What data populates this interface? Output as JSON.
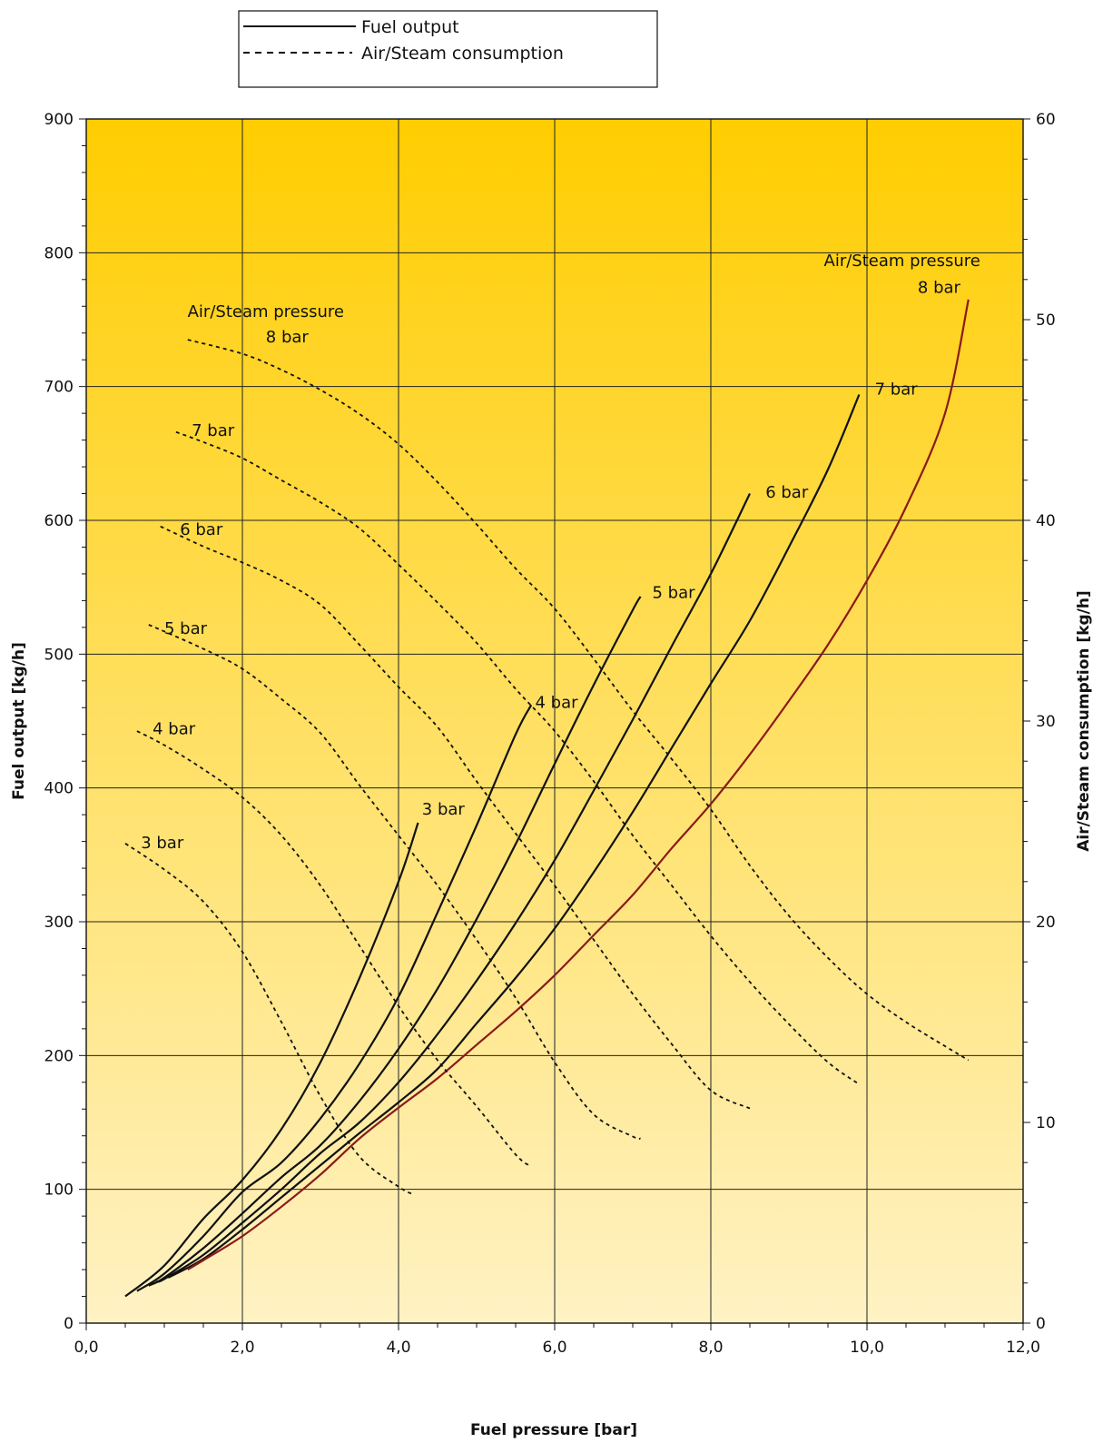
{
  "chart_data": {
    "type": "line",
    "xlabel": "Fuel pressure [bar]",
    "ylabel": "Fuel output [kg/h]",
    "y2label": "Air/Steam consumption [kg/h]",
    "xlim": [
      0,
      12
    ],
    "ylim": [
      0,
      900
    ],
    "y2lim": [
      0,
      60
    ],
    "x_ticks": [
      "0,0",
      "2,0",
      "4,0",
      "6,0",
      "8,0",
      "10,0",
      "12,0"
    ],
    "x_tick_values": [
      0,
      2,
      4,
      6,
      8,
      10,
      12
    ],
    "y_ticks": [
      "0",
      "100",
      "200",
      "300",
      "400",
      "500",
      "600",
      "700",
      "800",
      "900"
    ],
    "y_tick_values": [
      0,
      100,
      200,
      300,
      400,
      500,
      600,
      700,
      800,
      900
    ],
    "y2_ticks": [
      "0",
      "10",
      "20",
      "30",
      "40",
      "50",
      "60"
    ],
    "y2_tick_values": [
      0,
      10,
      20,
      30,
      40,
      50,
      60
    ],
    "grid": true,
    "background_gradient": [
      "#ffcd00",
      "#fff2c4"
    ],
    "legend": {
      "position": "top-center",
      "entries": [
        {
          "label": "Fuel output",
          "style": "solid"
        },
        {
          "label": "Air/Steam consumption",
          "style": "dashed"
        }
      ]
    },
    "series": [
      {
        "group": "fuel_output",
        "label": "3 bar",
        "axis": "left",
        "style": "solid",
        "color": "#111111",
        "x": [
          0.5,
          1.0,
          1.5,
          2.0,
          2.5,
          3.0,
          3.5,
          4.0,
          4.25
        ],
        "y": [
          20,
          43,
          78,
          107,
          145,
          195,
          258,
          330,
          374
        ]
      },
      {
        "group": "fuel_output",
        "label": "4 bar",
        "axis": "left",
        "style": "solid",
        "color": "#111111",
        "x": [
          0.65,
          1.0,
          1.5,
          2.0,
          2.5,
          3.0,
          3.5,
          4.0,
          4.5,
          5.0,
          5.5,
          5.7
        ],
        "y": [
          24,
          37,
          65,
          98,
          120,
          153,
          194,
          244,
          307,
          372,
          440,
          462
        ]
      },
      {
        "group": "fuel_output",
        "label": "5 bar",
        "axis": "left",
        "style": "solid",
        "color": "#111111",
        "x": [
          0.8,
          1.0,
          1.5,
          2.0,
          2.5,
          3.0,
          3.5,
          4.0,
          4.5,
          5.0,
          5.5,
          6.0,
          6.5,
          7.0,
          7.1
        ],
        "y": [
          28,
          34,
          56,
          82,
          109,
          133,
          166,
          205,
          250,
          302,
          358,
          418,
          477,
          533,
          543
        ]
      },
      {
        "group": "fuel_output",
        "label": "6 bar",
        "axis": "left",
        "style": "solid",
        "color": "#111111",
        "x": [
          0.9,
          1.0,
          1.5,
          2.0,
          2.5,
          3.0,
          3.5,
          4.0,
          4.5,
          5.0,
          5.5,
          6.0,
          6.5,
          7.0,
          7.5,
          8.0,
          8.5
        ],
        "y": [
          31,
          33,
          51,
          75,
          100,
          127,
          150,
          180,
          216,
          256,
          299,
          346,
          398,
          451,
          506,
          560,
          620
        ]
      },
      {
        "group": "fuel_output",
        "label": "7 bar",
        "axis": "left",
        "style": "solid",
        "color": "#111111",
        "x": [
          1.05,
          1.5,
          2.0,
          2.5,
          3.0,
          3.5,
          4.0,
          4.5,
          5.0,
          5.5,
          6.0,
          6.5,
          7.0,
          7.5,
          8.0,
          8.5,
          9.0,
          9.5,
          9.9
        ],
        "y": [
          34,
          48,
          70,
          94,
          118,
          142,
          165,
          190,
          224,
          258,
          295,
          337,
          382,
          430,
          478,
          525,
          580,
          638,
          694
        ]
      },
      {
        "group": "fuel_output",
        "label": "8 bar",
        "axis": "left",
        "style": "solid",
        "color": "#8b1a1a",
        "x": [
          1.3,
          1.5,
          2.0,
          2.5,
          3.0,
          3.5,
          4.0,
          4.5,
          5.0,
          5.5,
          6.0,
          6.5,
          7.0,
          7.5,
          8.0,
          8.5,
          9.0,
          9.5,
          10.0,
          10.5,
          11.0,
          11.3
        ],
        "y": [
          40,
          47,
          65,
          87,
          111,
          138,
          161,
          183,
          208,
          233,
          260,
          290,
          320,
          355,
          388,
          425,
          465,
          507,
          555,
          610,
          680,
          765
        ]
      },
      {
        "group": "air_steam_consumption",
        "label": "3 bar",
        "axis": "right",
        "style": "dashed",
        "color": "#111111",
        "x": [
          0.5,
          1.0,
          1.5,
          2.0,
          2.5,
          3.0,
          3.5,
          4.0,
          4.2
        ],
        "y": [
          23.9,
          22.6,
          21.0,
          18.5,
          15.0,
          11.3,
          8.3,
          6.8,
          6.4
        ]
      },
      {
        "group": "air_steam_consumption",
        "label": "4 bar",
        "axis": "right",
        "style": "dashed",
        "color": "#111111",
        "x": [
          0.65,
          1.0,
          1.5,
          2.0,
          2.5,
          3.0,
          3.5,
          4.0,
          4.5,
          5.0,
          5.5,
          5.7
        ],
        "y": [
          29.5,
          28.8,
          27.6,
          26.2,
          24.3,
          21.8,
          18.8,
          15.8,
          13.1,
          10.8,
          8.4,
          7.8
        ]
      },
      {
        "group": "air_steam_consumption",
        "label": "5 bar",
        "axis": "right",
        "style": "dashed",
        "color": "#111111",
        "x": [
          0.8,
          1.5,
          2.0,
          2.5,
          3.0,
          3.5,
          4.0,
          4.5,
          5.0,
          5.5,
          6.0,
          6.5,
          7.0,
          7.1
        ],
        "y": [
          34.8,
          33.6,
          32.6,
          31.1,
          29.4,
          26.8,
          24.3,
          21.8,
          19.1,
          16.2,
          13.0,
          10.4,
          9.3,
          9.2
        ]
      },
      {
        "group": "air_steam_consumption",
        "label": "6 bar",
        "axis": "right",
        "style": "dashed",
        "color": "#111111",
        "x": [
          0.95,
          1.5,
          2.0,
          2.5,
          3.0,
          3.5,
          4.0,
          4.5,
          5.0,
          5.5,
          6.0,
          6.5,
          7.0,
          7.5,
          8.0,
          8.5
        ],
        "y": [
          39.7,
          38.7,
          37.9,
          37.0,
          35.8,
          33.8,
          31.7,
          29.7,
          27.0,
          24.4,
          21.8,
          19.1,
          16.4,
          13.9,
          11.6,
          10.7
        ]
      },
      {
        "group": "air_steam_consumption",
        "label": "7 bar",
        "axis": "right",
        "style": "dashed",
        "color": "#111111",
        "x": [
          1.15,
          1.5,
          2.0,
          2.5,
          3.0,
          3.5,
          4.0,
          4.5,
          5.0,
          5.5,
          6.0,
          6.5,
          7.0,
          7.5,
          8.0,
          8.5,
          9.0,
          9.5,
          9.9
        ],
        "y": [
          44.4,
          43.9,
          43.1,
          42.0,
          40.9,
          39.6,
          37.8,
          35.9,
          33.9,
          31.6,
          29.5,
          27.0,
          24.3,
          21.8,
          19.3,
          17.0,
          14.9,
          13.0,
          11.9
        ]
      },
      {
        "group": "air_steam_consumption",
        "label": "8 bar",
        "axis": "right",
        "style": "dashed",
        "color": "#111111",
        "x": [
          1.3,
          2.0,
          2.5,
          3.0,
          3.5,
          4.0,
          4.5,
          5.0,
          5.5,
          6.0,
          6.5,
          7.0,
          7.5,
          8.0,
          8.5,
          9.0,
          9.5,
          10.0,
          10.5,
          11.0,
          11.3
        ],
        "y": [
          49.0,
          48.3,
          47.5,
          46.5,
          45.3,
          43.8,
          41.9,
          39.8,
          37.6,
          35.6,
          33.1,
          30.5,
          28.1,
          25.6,
          22.8,
          20.3,
          18.2,
          16.4,
          15.0,
          13.8,
          13.1
        ]
      }
    ],
    "annotations": [
      {
        "text": "3 bar",
        "group": "fuel_output",
        "x": 4.3,
        "y": 380
      },
      {
        "text": "4 bar",
        "group": "fuel_output",
        "x": 5.75,
        "y": 460
      },
      {
        "text": "5 bar",
        "group": "fuel_output",
        "x": 7.25,
        "y": 542
      },
      {
        "text": "6 bar",
        "group": "fuel_output",
        "x": 8.7,
        "y": 617
      },
      {
        "text": "7 bar",
        "group": "fuel_output",
        "x": 10.1,
        "y": 694
      },
      {
        "text": "Air/Steam pressure",
        "group": "fuel_output",
        "x": 10.45,
        "y": 790
      },
      {
        "text": "8 bar",
        "group": "fuel_output",
        "x": 10.65,
        "y": 770
      },
      {
        "text": "3 bar",
        "group": "air_steam_consumption",
        "x": 0.7,
        "y": 355
      },
      {
        "text": "4 bar",
        "group": "air_steam_consumption",
        "x": 0.85,
        "y": 440
      },
      {
        "text": "5 bar",
        "group": "air_steam_consumption",
        "x": 1.0,
        "y": 515
      },
      {
        "text": "6 bar",
        "group": "air_steam_consumption",
        "x": 1.2,
        "y": 589
      },
      {
        "text": "7 bar",
        "group": "air_steam_consumption",
        "x": 1.35,
        "y": 663
      },
      {
        "text": "Air/Steam pressure",
        "group": "air_steam_consumption",
        "x": 2.3,
        "y": 752
      },
      {
        "text": "8 bar",
        "group": "air_steam_consumption",
        "x": 2.3,
        "y": 733
      }
    ]
  }
}
